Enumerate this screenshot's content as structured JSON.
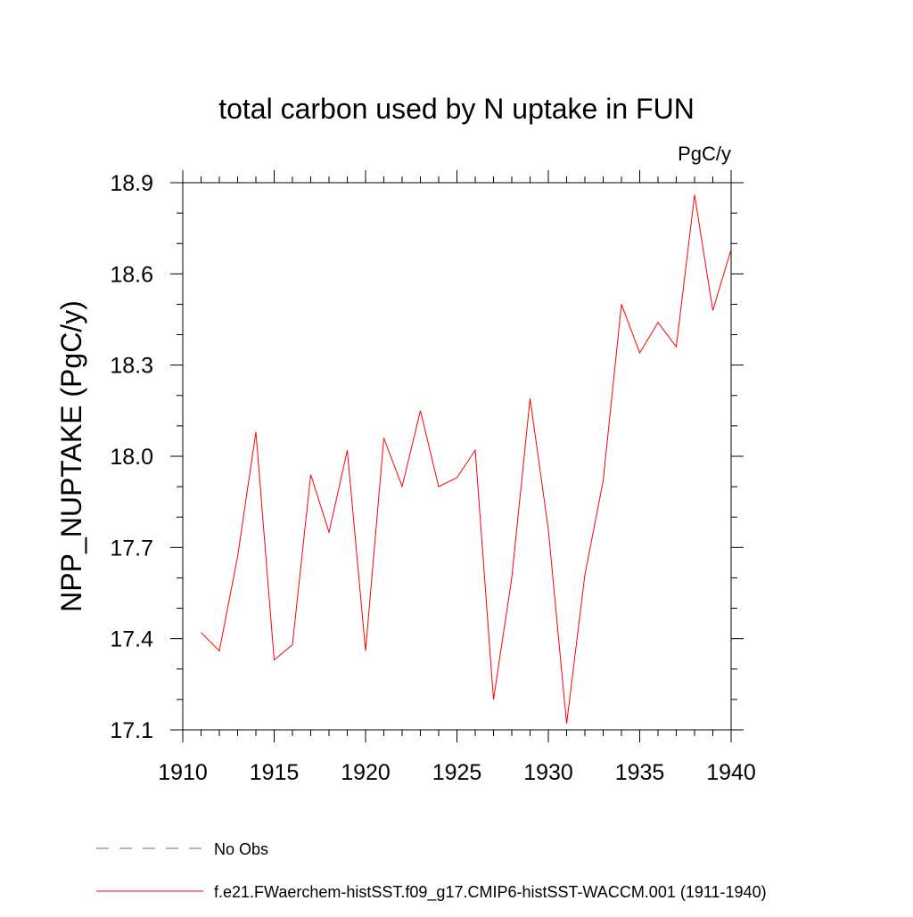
{
  "chart_data": {
    "type": "line",
    "title": "total carbon used by N uptake in FUN",
    "units_label": "PgC/y",
    "ylabel": "NPP_NUPTAKE  (PgC/y)",
    "xlabel": "",
    "xlim": [
      1910,
      1940
    ],
    "ylim": [
      17.1,
      18.9
    ],
    "x_ticks": [
      1910,
      1915,
      1920,
      1925,
      1930,
      1935,
      1940
    ],
    "x_tick_labels": [
      "1910",
      "1915",
      "1920",
      "1925",
      "1930",
      "1935",
      "1940"
    ],
    "y_ticks": [
      17.1,
      17.4,
      17.7,
      18.0,
      18.3,
      18.6,
      18.9
    ],
    "y_tick_labels": [
      "17.1",
      "17.4",
      "17.7",
      "18.0",
      "18.3",
      "18.6",
      "18.9"
    ],
    "grid": false,
    "legend_position": "bottom-left",
    "series": [
      {
        "name": "f.e21.FWaerchem-histSST.f09_g17.CMIP6-histSST-WACCM.001 (1911-1940)",
        "color": "#ff0000",
        "dash": "solid",
        "x": [
          1911,
          1912,
          1913,
          1914,
          1915,
          1916,
          1917,
          1918,
          1919,
          1920,
          1921,
          1922,
          1923,
          1924,
          1925,
          1926,
          1927,
          1928,
          1929,
          1930,
          1931,
          1932,
          1933,
          1934,
          1935,
          1936,
          1937,
          1938,
          1939,
          1940
        ],
        "values": [
          17.42,
          17.36,
          17.67,
          18.08,
          17.33,
          17.38,
          17.94,
          17.75,
          18.02,
          17.36,
          18.06,
          17.9,
          18.15,
          17.9,
          17.93,
          18.02,
          17.2,
          17.6,
          18.19,
          17.76,
          17.12,
          17.61,
          17.92,
          18.5,
          18.34,
          18.44,
          18.36,
          18.86,
          18.48,
          18.68
        ]
      }
    ],
    "legend": [
      {
        "label": "No Obs",
        "color": "#6b5fb0",
        "dash": "dashed"
      },
      {
        "label": "f.e21.FWaerchem-histSST.f09_g17.CMIP6-histSST-WACCM.001 (1911-1940)",
        "color": "#ff0000",
        "dash": "solid"
      }
    ]
  }
}
